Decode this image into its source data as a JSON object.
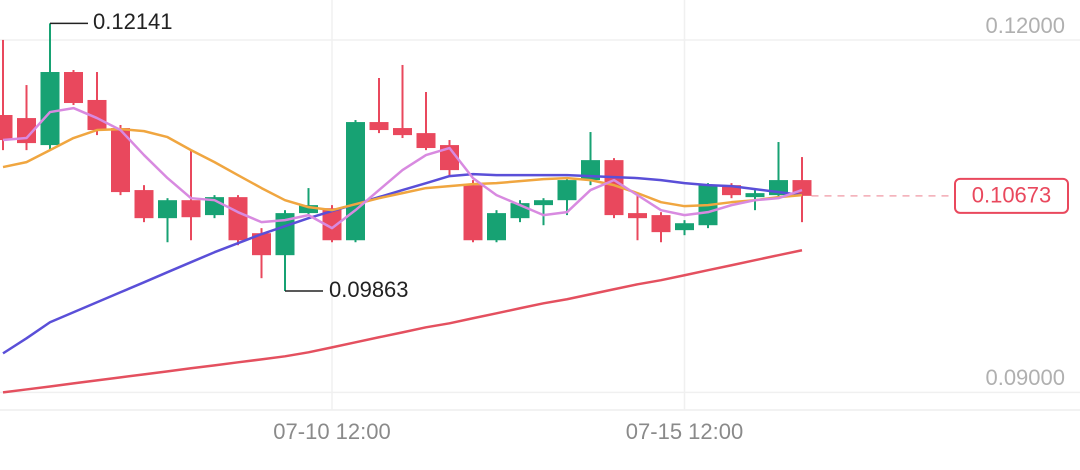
{
  "chart_data": {
    "type": "candlestick",
    "categories": [
      null,
      null,
      null,
      null,
      null,
      null,
      null,
      null,
      null,
      null,
      null,
      null,
      null,
      null,
      "07-10 12:00",
      null,
      null,
      null,
      null,
      null,
      null,
      null,
      null,
      null,
      null,
      null,
      null,
      null,
      null,
      "07-15 12:00",
      null,
      null,
      null,
      null,
      null
    ],
    "open": [
      0.11361,
      0.11335,
      0.11105,
      0.11727,
      0.11489,
      0.1125,
      0.10722,
      0.10483,
      0.10636,
      0.10509,
      0.10662,
      0.10355,
      0.10168,
      0.10526,
      0.10568,
      0.10295,
      0.11301,
      0.1125,
      0.11207,
      0.11105,
      0.10764,
      0.10295,
      0.10483,
      0.10594,
      0.10636,
      0.10807,
      0.10977,
      0.10526,
      0.10509,
      0.10381,
      0.10423,
      0.10764,
      0.10662,
      0.10679,
      0.10807
    ],
    "high": [
      0.12,
      0.11616,
      0.12141,
      0.11744,
      0.11727,
      0.11276,
      0.10764,
      0.10653,
      0.11062,
      0.10679,
      0.10679,
      0.10398,
      0.10551,
      0.10739,
      0.10594,
      0.11318,
      0.11676,
      0.11787,
      0.11557,
      0.11148,
      0.10807,
      0.10551,
      0.10636,
      0.10653,
      0.10824,
      0.11216,
      0.10994,
      0.10679,
      0.10534,
      0.10466,
      0.10781,
      0.10781,
      0.10722,
      0.11131,
      0.11003
    ],
    "low": [
      0.11062,
      0.11062,
      0.11062,
      0.11446,
      0.1119,
      0.10679,
      0.10449,
      0.10278,
      0.10295,
      0.10483,
      0.10253,
      0.09972,
      0.09863,
      0.10509,
      0.10278,
      0.10278,
      0.11207,
      0.11165,
      0.11062,
      0.10849,
      0.10278,
      0.10278,
      0.10449,
      0.10423,
      0.10509,
      0.10764,
      0.10483,
      0.10295,
      0.10278,
      0.10338,
      0.10398,
      0.10653,
      0.10551,
      0.10653,
      0.10449
    ],
    "close": [
      0.11148,
      0.11122,
      0.11727,
      0.11463,
      0.11233,
      0.10705,
      0.10483,
      0.10636,
      0.10491,
      0.10662,
      0.10295,
      0.10168,
      0.10526,
      0.10594,
      0.10295,
      0.11301,
      0.11233,
      0.1119,
      0.1108,
      0.10892,
      0.10295,
      0.10526,
      0.10611,
      0.10636,
      0.10807,
      0.10977,
      0.10509,
      0.10483,
      0.10364,
      0.1044,
      0.10764,
      0.10679,
      0.10696,
      0.10807,
      0.10673
    ],
    "up_color": "#17a273",
    "down_color": "#e9485d",
    "series": [
      {
        "color": "#e4505f",
        "values": [
          0.09,
          0.09025,
          0.0905,
          0.09077,
          0.09102,
          0.09128,
          0.09153,
          0.09179,
          0.09205,
          0.0923,
          0.09256,
          0.09281,
          0.09307,
          0.09341,
          0.09383,
          0.09426,
          0.09469,
          0.09511,
          0.09554,
          0.09588,
          0.09631,
          0.09673,
          0.09716,
          0.09758,
          0.09793,
          0.09835,
          0.09878,
          0.0992,
          0.09955,
          0.09997,
          0.1004,
          0.10082,
          0.10125,
          0.10168,
          0.1021
        ]
      },
      {
        "color": "#5a4fd8",
        "values": [
          0.09332,
          0.0946,
          0.09597,
          0.09682,
          0.09767,
          0.09852,
          0.09937,
          0.10023,
          0.10108,
          0.10193,
          0.1027,
          0.10347,
          0.10415,
          0.10483,
          0.10543,
          0.10602,
          0.10662,
          0.10722,
          0.10781,
          0.10841,
          0.10858,
          0.10849,
          0.10849,
          0.10849,
          0.10849,
          0.10841,
          0.10832,
          0.10824,
          0.10807,
          0.10781,
          0.10764,
          0.10756,
          0.1073,
          0.10705,
          0.10679
        ]
      },
      {
        "color": "#f0a640",
        "values": [
          0.10918,
          0.1096,
          0.11062,
          0.11165,
          0.11233,
          0.11241,
          0.11224,
          0.11173,
          0.11062,
          0.1096,
          0.10849,
          0.10739,
          0.10636,
          0.10577,
          0.10551,
          0.10602,
          0.10653,
          0.10696,
          0.10739,
          0.10756,
          0.10773,
          0.10781,
          0.10798,
          0.10815,
          0.10824,
          0.10807,
          0.10764,
          0.10696,
          0.10619,
          0.10585,
          0.10594,
          0.10619,
          0.10636,
          0.10662,
          0.10679
        ]
      },
      {
        "color": "#d88ae0",
        "values": [
          0.11148,
          0.11165,
          0.11386,
          0.1142,
          0.11335,
          0.11233,
          0.1102,
          0.10824,
          0.10653,
          0.10636,
          0.10534,
          0.10449,
          0.10466,
          0.10509,
          0.10398,
          0.10551,
          0.10722,
          0.10892,
          0.1102,
          0.1108,
          0.10824,
          0.10679,
          0.10594,
          0.10509,
          0.10534,
          0.10722,
          0.10807,
          0.10679,
          0.10551,
          0.10509,
          0.10534,
          0.10594,
          0.10636,
          0.10653,
          0.10722
        ]
      }
    ],
    "ylim": [
      0.0885,
      0.1234
    ],
    "yticks": [
      {
        "value": 0.09,
        "label": "0.09000"
      },
      {
        "value": 0.12,
        "label": "0.12000"
      }
    ],
    "grid": true
  }
}
